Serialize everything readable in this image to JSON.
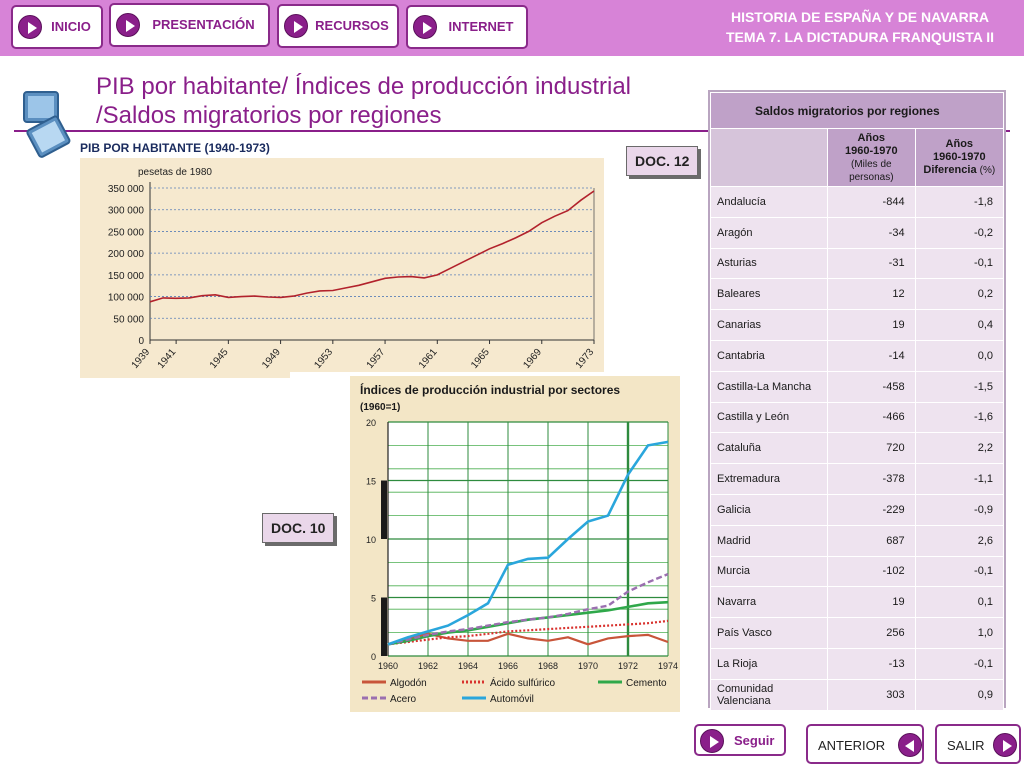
{
  "nav": {
    "buttons": [
      {
        "label": "INICIO"
      },
      {
        "label": "PRESENTACIÓN"
      },
      {
        "label": "RECURSOS"
      },
      {
        "label": "INTERNET"
      }
    ],
    "header_line1": "HISTORIA DE ESPAÑA Y DE NAVARRA",
    "header_line2": "TEMA 7. LA DICTADURA FRANQUISTA II"
  },
  "slide": {
    "title_line1": "PIB por habitante/ Índices de producción industrial",
    "title_line2": "/Saldos migratorios por regiones"
  },
  "docs": {
    "doc12": "DOC. 12",
    "doc10": "DOC. 10"
  },
  "colors": {
    "brand": "#8a1f8a",
    "header_bg": "#d783d7",
    "pib_line": "#b2222c",
    "algodon": "#c8553a",
    "acido": "#d8322e",
    "cemento": "#2fa84a",
    "acero": "#9b6fb0",
    "automovil": "#2aa6dc"
  },
  "chart_data": [
    {
      "type": "line",
      "title": "PIB POR HABITANTE (1940-1973)",
      "ylabel": "pesetas de 1980",
      "ylim": [
        0,
        350000
      ],
      "yticks": [
        "350 000",
        "300 000",
        "250 000",
        "200 000",
        "150 000",
        "100 000",
        "50 000",
        "0"
      ],
      "xticks": [
        "1939",
        "1941",
        "1945",
        "1949",
        "1953",
        "1957",
        "1961",
        "1965",
        "1969",
        "1973"
      ],
      "x": [
        1939,
        1940,
        1941,
        1942,
        1943,
        1944,
        1945,
        1946,
        1947,
        1948,
        1949,
        1950,
        1951,
        1952,
        1953,
        1954,
        1955,
        1956,
        1957,
        1958,
        1959,
        1960,
        1961,
        1962,
        1963,
        1964,
        1965,
        1966,
        1967,
        1968,
        1969,
        1970,
        1971,
        1972,
        1973
      ],
      "y": [
        88000,
        97000,
        96000,
        97000,
        102000,
        104000,
        98000,
        100000,
        101000,
        99000,
        98000,
        101000,
        108000,
        113000,
        114000,
        120000,
        126000,
        134000,
        142000,
        145000,
        146000,
        143000,
        150000,
        165000,
        180000,
        195000,
        210000,
        222000,
        235000,
        250000,
        270000,
        285000,
        298000,
        322000,
        343000
      ]
    },
    {
      "type": "line",
      "title": "Índices de producción industrial por sectores",
      "subtitle": "(1960=1)",
      "ylim": [
        0,
        20
      ],
      "yticks": [
        "20",
        "15",
        "10",
        "5",
        "0"
      ],
      "xticks": [
        "1960",
        "1962",
        "1964",
        "1966",
        "1968",
        "1970",
        "1972",
        "1974"
      ],
      "x": [
        1960,
        1961,
        1962,
        1963,
        1964,
        1965,
        1966,
        1967,
        1968,
        1969,
        1970,
        1971,
        1972,
        1973,
        1974
      ],
      "series": [
        {
          "name": "Algodón",
          "key": "algodon",
          "values": [
            1.0,
            1.5,
            1.9,
            1.5,
            1.3,
            1.3,
            1.9,
            1.5,
            1.3,
            1.6,
            1.0,
            1.5,
            1.7,
            1.8,
            1.2
          ]
        },
        {
          "name": "Ácido sulfúrico",
          "key": "acido",
          "values": [
            1.0,
            1.2,
            1.4,
            1.6,
            1.7,
            1.9,
            2.1,
            2.2,
            2.3,
            2.4,
            2.5,
            2.6,
            2.7,
            2.8,
            3.0
          ]
        },
        {
          "name": "Cemento",
          "key": "cemento",
          "values": [
            1.0,
            1.3,
            1.7,
            2.0,
            2.2,
            2.5,
            2.8,
            3.1,
            3.3,
            3.5,
            3.7,
            3.9,
            4.2,
            4.5,
            4.6
          ]
        },
        {
          "name": "Acero",
          "key": "acero",
          "values": [
            1.0,
            1.4,
            1.8,
            2.1,
            2.3,
            2.6,
            2.9,
            3.1,
            3.3,
            3.6,
            4.0,
            4.3,
            5.5,
            6.3,
            7.0
          ]
        },
        {
          "name": "Automóvil",
          "key": "automovil",
          "values": [
            1.0,
            1.6,
            2.1,
            2.6,
            3.5,
            4.5,
            7.8,
            8.3,
            8.4,
            10.0,
            11.5,
            12.0,
            15.5,
            18.0,
            18.3
          ]
        }
      ]
    }
  ],
  "migration_table": {
    "title": "Saldos migratorios por regiones",
    "col1_line1": "Años",
    "col1_line2": "1960-1970",
    "col1_line3": "(Miles de personas)",
    "col2_line1": "Años",
    "col2_line2": "1960-1970",
    "col2_line3_bold": "Diferencia",
    "col2_line3_unit": "(%)",
    "rows": [
      {
        "region": "Andalucía",
        "miles": "-844",
        "diferencia": "-1,8"
      },
      {
        "region": "Aragón",
        "miles": "-34",
        "diferencia": "-0,2"
      },
      {
        "region": "Asturias",
        "miles": "-31",
        "diferencia": "-0,1"
      },
      {
        "region": "Baleares",
        "miles": "12",
        "diferencia": "0,2"
      },
      {
        "region": "Canarias",
        "miles": "19",
        "diferencia": "0,4"
      },
      {
        "region": "Cantabria",
        "miles": "-14",
        "diferencia": "0,0"
      },
      {
        "region": "Castilla-La Mancha",
        "miles": "-458",
        "diferencia": "-1,5"
      },
      {
        "region": "Castilla y León",
        "miles": "-466",
        "diferencia": "-1,6"
      },
      {
        "region": "Cataluña",
        "miles": "720",
        "diferencia": "2,2"
      },
      {
        "region": "Extremadura",
        "miles": "-378",
        "diferencia": "-1,1"
      },
      {
        "region": "Galicia",
        "miles": "-229",
        "diferencia": "-0,9"
      },
      {
        "region": "Madrid",
        "miles": "687",
        "diferencia": "2,6"
      },
      {
        "region": "Murcia",
        "miles": "-102",
        "diferencia": "-0,1"
      },
      {
        "region": "Navarra",
        "miles": "19",
        "diferencia": "0,1"
      },
      {
        "region": "País Vasco",
        "miles": "256",
        "diferencia": "1,0"
      },
      {
        "region": "La Rioja",
        "miles": "-13",
        "diferencia": "-0,1"
      },
      {
        "region": "Comunidad Valenciana",
        "miles": "303",
        "diferencia": "0,9"
      }
    ]
  },
  "footer": {
    "seguir": "Seguir",
    "anterior": "ANTERIOR",
    "salir": "SALIR"
  }
}
